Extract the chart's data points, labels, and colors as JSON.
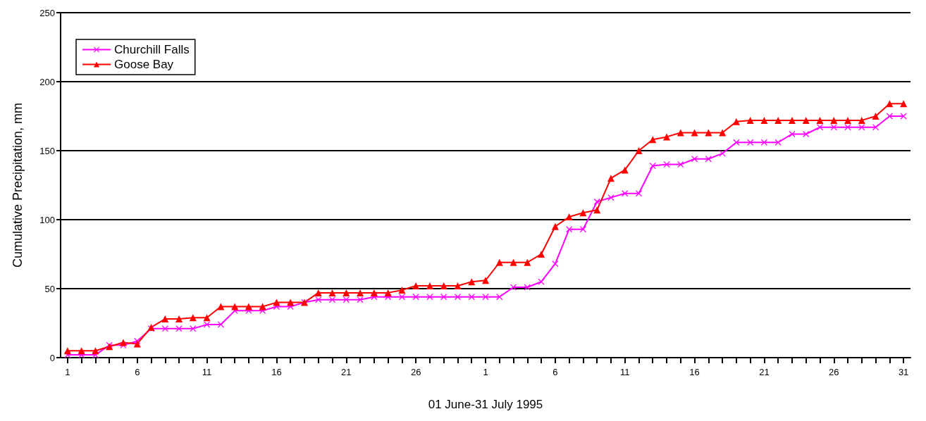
{
  "chart_data": {
    "type": "line",
    "xlabel": "01 June-31 July 1995",
    "ylabel": "Cumulative Precipitation, mm",
    "categories": [
      "1",
      null,
      null,
      null,
      null,
      "6",
      null,
      null,
      null,
      null,
      "11",
      null,
      null,
      null,
      null,
      "16",
      null,
      null,
      null,
      null,
      "21",
      null,
      null,
      null,
      null,
      "26",
      null,
      null,
      null,
      null,
      "1",
      null,
      null,
      null,
      null,
      "6",
      null,
      null,
      null,
      null,
      "11",
      null,
      null,
      null,
      null,
      "16",
      null,
      null,
      null,
      null,
      "21",
      null,
      null,
      null,
      null,
      "26",
      null,
      null,
      null,
      null,
      "31"
    ],
    "series": [
      {
        "name": "Churchill Falls",
        "color": "#ff00ff",
        "marker": "cross",
        "values": [
          2,
          2,
          2,
          9,
          9,
          12,
          21,
          21,
          21,
          21,
          24,
          24,
          34,
          34,
          34,
          37,
          37,
          40,
          42,
          42,
          42,
          42,
          44,
          44,
          44,
          44,
          44,
          44,
          44,
          44,
          44,
          44,
          51,
          51,
          55,
          68,
          93,
          93,
          113,
          116,
          119,
          119,
          139,
          140,
          140,
          144,
          144,
          148,
          156,
          156,
          156,
          156,
          162,
          162,
          167,
          167,
          167,
          167,
          167,
          175,
          175
        ]
      },
      {
        "name": "Goose Bay",
        "color": "#ff0000",
        "marker": "triangle",
        "values": [
          5,
          5,
          5,
          8,
          11,
          10,
          22,
          28,
          28,
          29,
          29,
          37,
          37,
          37,
          37,
          40,
          40,
          40,
          47,
          47,
          47,
          47,
          47,
          47,
          49,
          52,
          52,
          52,
          52,
          55,
          56,
          69,
          69,
          69,
          75,
          95,
          102,
          105,
          107,
          130,
          136,
          150,
          158,
          160,
          163,
          163,
          163,
          163,
          171,
          172,
          172,
          172,
          172,
          172,
          172,
          172,
          172,
          172,
          175,
          184,
          184
        ]
      }
    ],
    "ylim": [
      0,
      250
    ],
    "yticks": [
      0,
      50,
      100,
      150,
      200,
      250
    ],
    "grid": "y",
    "legend": "top left",
    "line_style": "solid"
  }
}
